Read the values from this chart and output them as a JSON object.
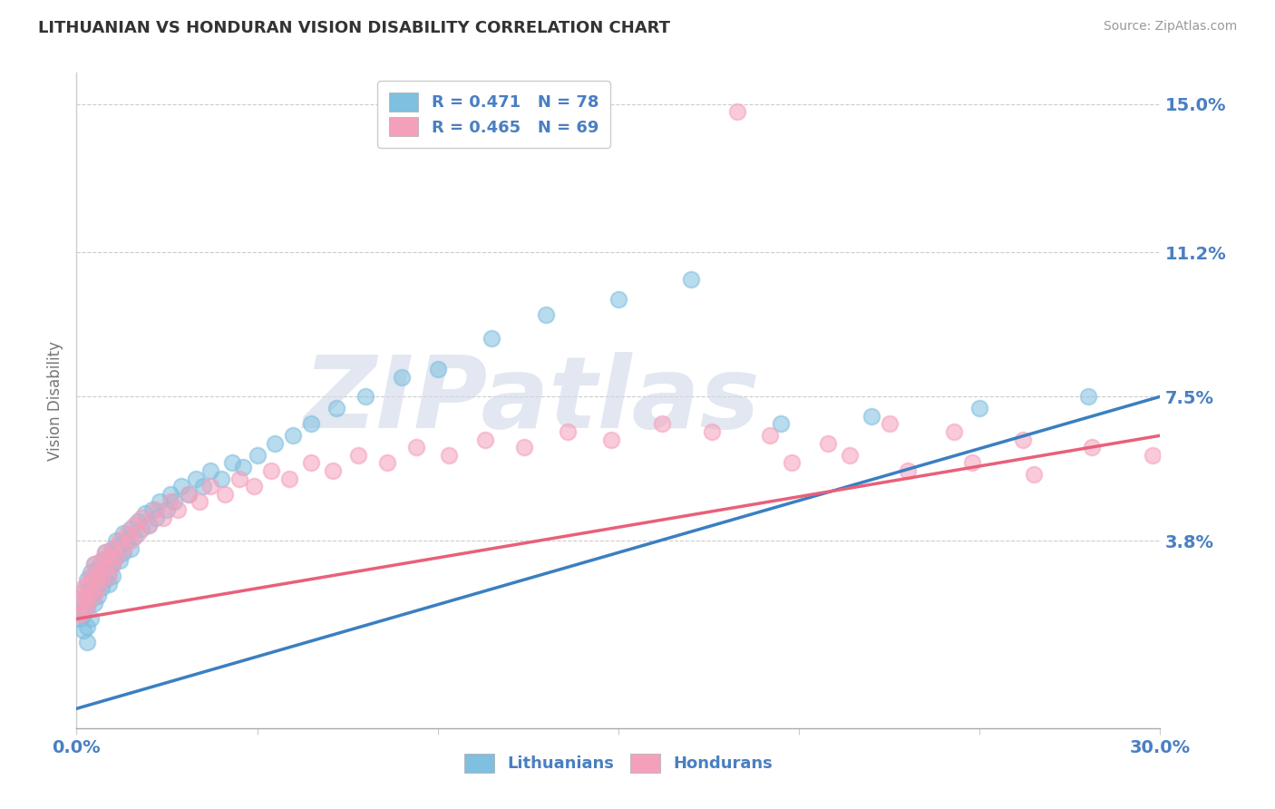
{
  "title": "LITHUANIAN VS HONDURAN VISION DISABILITY CORRELATION CHART",
  "source": "Source: ZipAtlas.com",
  "ylabel": "Vision Disability",
  "xlabel": "",
  "xlim": [
    0.0,
    0.3
  ],
  "ylim": [
    -0.01,
    0.158
  ],
  "xtick_positions": [
    0.0,
    0.05,
    0.1,
    0.15,
    0.2,
    0.25,
    0.3
  ],
  "xtick_labels": [
    "0.0%",
    "",
    "",
    "",
    "",
    "",
    "30.0%"
  ],
  "ytick_positions": [
    0.038,
    0.075,
    0.112,
    0.15
  ],
  "ytick_labels": [
    "3.8%",
    "7.5%",
    "11.2%",
    "15.0%"
  ],
  "grid_color": "#cccccc",
  "background_color": "#ffffff",
  "blue_color": "#7fbfdf",
  "pink_color": "#f5a0bb",
  "blue_line_color": "#3a7fc1",
  "pink_line_color": "#e8607a",
  "legend_R_blue": "R = 0.471",
  "legend_N_blue": "N = 78",
  "legend_R_pink": "R = 0.465",
  "legend_N_pink": "N = 69",
  "watermark": "ZIPatlas",
  "blue_scatter_x": [
    0.001,
    0.001,
    0.002,
    0.002,
    0.002,
    0.002,
    0.003,
    0.003,
    0.003,
    0.003,
    0.003,
    0.004,
    0.004,
    0.004,
    0.004,
    0.005,
    0.005,
    0.005,
    0.005,
    0.006,
    0.006,
    0.006,
    0.007,
    0.007,
    0.007,
    0.008,
    0.008,
    0.008,
    0.009,
    0.009,
    0.009,
    0.01,
    0.01,
    0.01,
    0.011,
    0.011,
    0.012,
    0.012,
    0.013,
    0.013,
    0.014,
    0.015,
    0.015,
    0.016,
    0.017,
    0.018,
    0.019,
    0.02,
    0.021,
    0.022,
    0.023,
    0.025,
    0.026,
    0.027,
    0.029,
    0.031,
    0.033,
    0.035,
    0.037,
    0.04,
    0.043,
    0.046,
    0.05,
    0.055,
    0.06,
    0.065,
    0.072,
    0.08,
    0.09,
    0.1,
    0.115,
    0.13,
    0.15,
    0.17,
    0.195,
    0.22,
    0.25,
    0.28
  ],
  "blue_scatter_y": [
    0.02,
    0.018,
    0.022,
    0.025,
    0.019,
    0.015,
    0.021,
    0.024,
    0.028,
    0.016,
    0.012,
    0.023,
    0.026,
    0.018,
    0.03,
    0.025,
    0.022,
    0.028,
    0.032,
    0.024,
    0.027,
    0.031,
    0.026,
    0.029,
    0.033,
    0.028,
    0.032,
    0.035,
    0.03,
    0.034,
    0.027,
    0.032,
    0.036,
    0.029,
    0.034,
    0.038,
    0.033,
    0.037,
    0.035,
    0.04,
    0.038,
    0.036,
    0.041,
    0.039,
    0.043,
    0.041,
    0.045,
    0.042,
    0.046,
    0.044,
    0.048,
    0.046,
    0.05,
    0.048,
    0.052,
    0.05,
    0.054,
    0.052,
    0.056,
    0.054,
    0.058,
    0.057,
    0.06,
    0.063,
    0.065,
    0.068,
    0.072,
    0.075,
    0.08,
    0.082,
    0.09,
    0.096,
    0.1,
    0.105,
    0.068,
    0.07,
    0.072,
    0.075
  ],
  "pink_scatter_x": [
    0.001,
    0.001,
    0.002,
    0.002,
    0.002,
    0.003,
    0.003,
    0.003,
    0.004,
    0.004,
    0.005,
    0.005,
    0.005,
    0.006,
    0.006,
    0.007,
    0.007,
    0.008,
    0.008,
    0.009,
    0.009,
    0.01,
    0.01,
    0.011,
    0.012,
    0.013,
    0.014,
    0.015,
    0.016,
    0.017,
    0.018,
    0.02,
    0.022,
    0.024,
    0.026,
    0.028,
    0.031,
    0.034,
    0.037,
    0.041,
    0.045,
    0.049,
    0.054,
    0.059,
    0.065,
    0.071,
    0.078,
    0.086,
    0.094,
    0.103,
    0.113,
    0.124,
    0.136,
    0.148,
    0.162,
    0.176,
    0.192,
    0.208,
    0.225,
    0.243,
    0.262,
    0.281,
    0.298,
    0.265,
    0.248,
    0.23,
    0.214,
    0.198,
    0.183
  ],
  "pink_scatter_y": [
    0.022,
    0.019,
    0.024,
    0.02,
    0.026,
    0.023,
    0.027,
    0.021,
    0.025,
    0.029,
    0.024,
    0.028,
    0.032,
    0.026,
    0.03,
    0.028,
    0.033,
    0.031,
    0.035,
    0.029,
    0.034,
    0.032,
    0.036,
    0.034,
    0.038,
    0.036,
    0.04,
    0.038,
    0.042,
    0.04,
    0.044,
    0.042,
    0.046,
    0.044,
    0.048,
    0.046,
    0.05,
    0.048,
    0.052,
    0.05,
    0.054,
    0.052,
    0.056,
    0.054,
    0.058,
    0.056,
    0.06,
    0.058,
    0.062,
    0.06,
    0.064,
    0.062,
    0.066,
    0.064,
    0.068,
    0.066,
    0.065,
    0.063,
    0.068,
    0.066,
    0.064,
    0.062,
    0.06,
    0.055,
    0.058,
    0.056,
    0.06,
    0.058,
    0.148
  ]
}
